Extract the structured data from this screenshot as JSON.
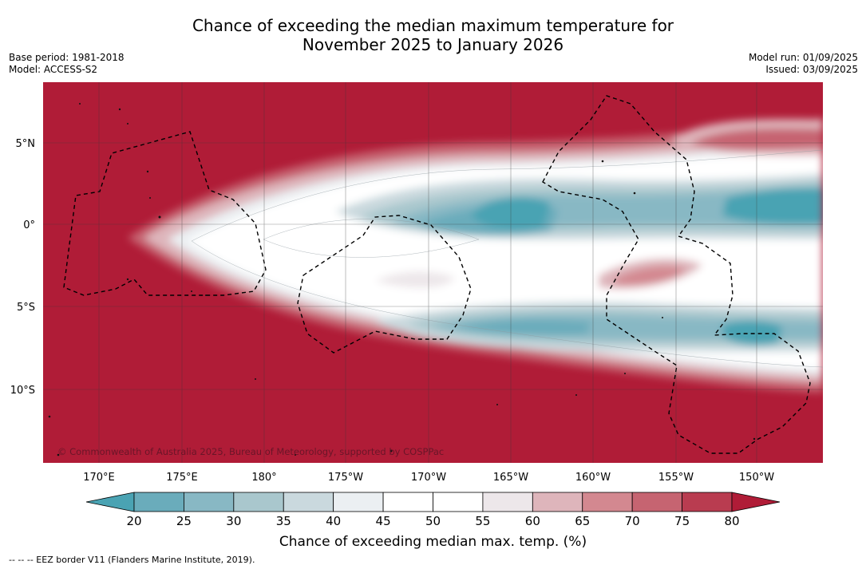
{
  "title_line1": "Chance of exceeding the median maximum temperature for",
  "title_line2": "November 2025 to January 2026",
  "meta_left": {
    "base_period": "Base period: 1981-2018",
    "model": "Model: ACCESS-S2"
  },
  "meta_right": {
    "model_run": "Model run: 01/09/2025",
    "issued": "Issued: 03/09/2025"
  },
  "lat_labels": [
    "5°N",
    "0°",
    "5°S",
    "10°S"
  ],
  "lon_labels": [
    "170°E",
    "175°E",
    "180°",
    "175°W",
    "170°W",
    "165°W",
    "160°W",
    "155°W",
    "150°W"
  ],
  "copyright": "© Commonwealth of Australia 2025, Bureau of Meteorology, supported by COSPPac",
  "colorbar": {
    "ticks": [
      "20",
      "25",
      "30",
      "35",
      "40",
      "45",
      "50",
      "55",
      "60",
      "65",
      "70",
      "75",
      "80"
    ],
    "colors": [
      "#4aa3b3",
      "#6aacbb",
      "#88b8c4",
      "#a9c7cd",
      "#cad9de",
      "#ebeff2",
      "#ffffff",
      "#ffffff",
      "#ede7ea",
      "#deb5bb",
      "#d38890",
      "#c66471",
      "#b93c50",
      "#b01c37"
    ],
    "label": "Chance of exceeding median max. temp. (%)"
  },
  "footnote": "--  --  -- EEZ border V11 (Flanders Marine Institute, 2019)."
}
